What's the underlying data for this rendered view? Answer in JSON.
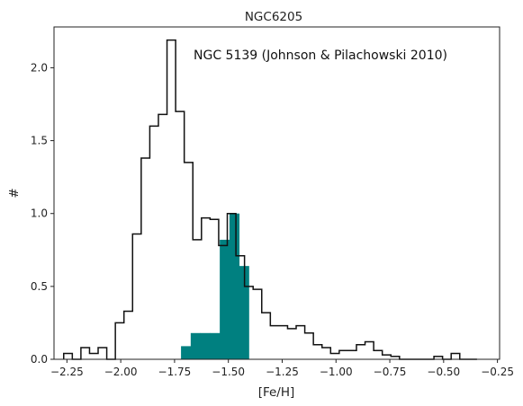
{
  "chart_data": {
    "type": "histogram",
    "title": "NGC6205",
    "xlabel": "[Fe/H]",
    "ylabel": "#",
    "xlim": [
      -2.31,
      -0.24
    ],
    "ylim": [
      0,
      2.28
    ],
    "x_ticks": [
      -2.25,
      -2.0,
      -1.75,
      -1.5,
      -1.25,
      -1.0,
      -0.75,
      -0.5,
      -0.25
    ],
    "x_tick_labels": [
      "−2.25",
      "−2.00",
      "−1.75",
      "−1.50",
      "−1.25",
      "−1.00",
      "−0.75",
      "−0.50",
      "−0.25"
    ],
    "y_ticks": [
      0.0,
      0.5,
      1.0,
      1.5,
      2.0
    ],
    "y_tick_labels": [
      "0.0",
      "0.5",
      "1.0",
      "1.5",
      "2.0"
    ],
    "grid": false,
    "annotation": "NGC 5139 (Johnson & Pilachowski 2010)",
    "series": [
      {
        "style": "step",
        "color": "#111111",
        "bin_edges": [
          -2.265,
          -2.225,
          -2.185,
          -2.145,
          -2.105,
          -2.065,
          -2.025,
          -1.985,
          -1.945,
          -1.905,
          -1.865,
          -1.825,
          -1.785,
          -1.745,
          -1.705,
          -1.665,
          -1.625,
          -1.585,
          -1.545,
          -1.505,
          -1.465,
          -1.425,
          -1.385,
          -1.345,
          -1.305,
          -1.265,
          -1.225,
          -1.185,
          -1.145,
          -1.105,
          -1.065,
          -1.025,
          -0.985,
          -0.945,
          -0.905,
          -0.865,
          -0.825,
          -0.785,
          -0.745,
          -0.705,
          -0.665,
          -0.625,
          -0.585,
          -0.545,
          -0.505,
          -0.465,
          -0.425,
          -0.385,
          -0.345
        ],
        "counts": [
          0.04,
          0.0,
          0.08,
          0.04,
          0.08,
          0.0,
          0.25,
          0.33,
          0.86,
          1.38,
          1.6,
          1.68,
          2.19,
          1.7,
          1.35,
          0.82,
          0.97,
          0.96,
          0.78,
          1.0,
          0.71,
          0.5,
          0.48,
          0.32,
          0.23,
          0.23,
          0.21,
          0.23,
          0.18,
          0.1,
          0.08,
          0.04,
          0.06,
          0.06,
          0.1,
          0.12,
          0.06,
          0.03,
          0.02,
          0.0,
          0.0,
          0.0,
          0.0,
          0.02,
          0.0,
          0.04,
          0.0,
          0.0
        ]
      },
      {
        "style": "filled",
        "color": "#008080",
        "bin_edges": [
          -1.72,
          -1.675,
          -1.63,
          -1.585,
          -1.54,
          -1.495,
          -1.45,
          -1.405,
          -1.385
        ],
        "counts": [
          0.09,
          0.18,
          0.18,
          0.18,
          0.82,
          1.0,
          0.64,
          0.0
        ]
      }
    ]
  }
}
